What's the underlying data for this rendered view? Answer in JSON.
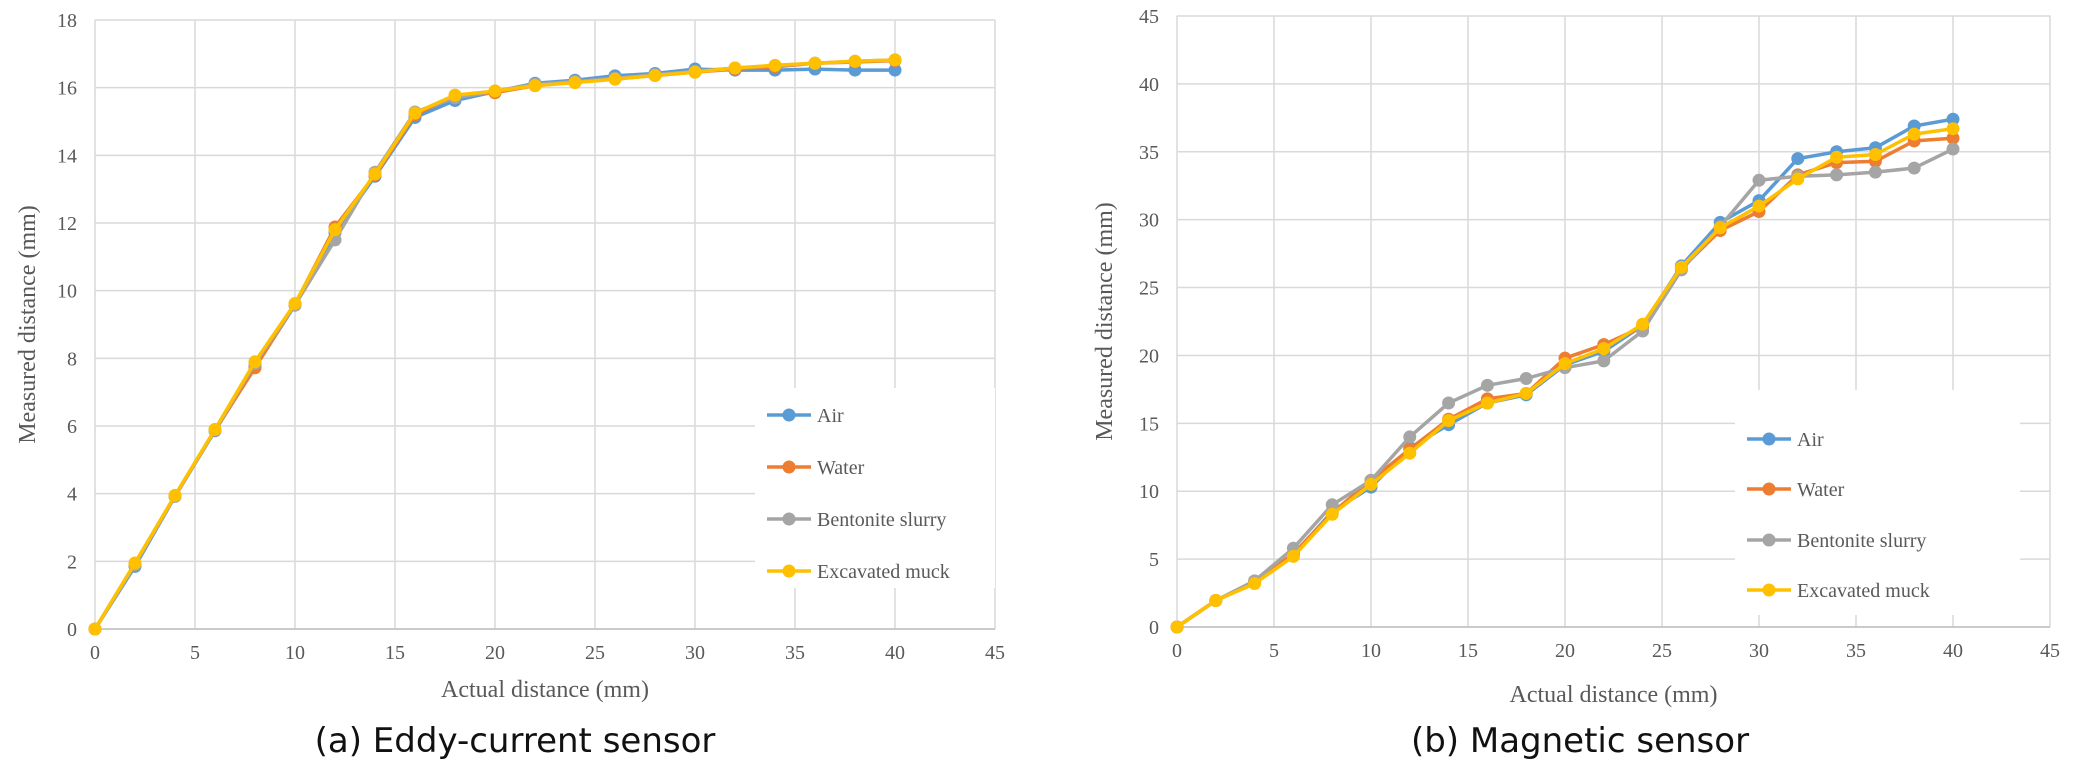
{
  "chart_data": [
    {
      "type": "line",
      "caption": "(a) Eddy-current sensor",
      "xlabel": "Actual distance (mm)",
      "ylabel": "Measured distance (mm)",
      "xlim": [
        0,
        45
      ],
      "ylim": [
        0,
        18
      ],
      "xticks": [
        0,
        5,
        10,
        15,
        20,
        25,
        30,
        35,
        40,
        45
      ],
      "yticks": [
        0,
        2,
        4,
        6,
        8,
        10,
        12,
        14,
        16,
        18
      ],
      "grid": true,
      "legend_position": "bottom-right",
      "x": [
        0,
        2,
        4,
        6,
        8,
        10,
        12,
        14,
        16,
        18,
        20,
        22,
        24,
        26,
        28,
        30,
        32,
        34,
        36,
        38,
        40
      ],
      "series": [
        {
          "name": "Air",
          "color": "#5B9BD5",
          "values": [
            0,
            1.85,
            3.92,
            5.86,
            7.75,
            9.57,
            11.72,
            13.38,
            15.12,
            15.62,
            15.88,
            16.13,
            16.22,
            16.35,
            16.42,
            16.55,
            16.52,
            16.52,
            16.55,
            16.52,
            16.52
          ]
        },
        {
          "name": "Water",
          "color": "#ED7D31",
          "values": [
            0,
            1.92,
            3.94,
            5.88,
            7.72,
            9.6,
            11.88,
            13.42,
            15.2,
            15.75,
            15.85,
            16.06,
            16.16,
            16.26,
            16.36,
            16.46,
            16.55,
            16.62,
            16.72,
            16.76,
            16.8
          ]
        },
        {
          "name": "Bentonite slurry",
          "color": "#A5A5A5",
          "values": [
            0,
            1.9,
            3.93,
            5.88,
            7.85,
            9.58,
            11.5,
            13.5,
            15.28,
            15.7,
            15.9,
            16.1,
            16.18,
            16.28,
            16.38,
            16.48,
            16.58,
            16.65,
            16.72,
            16.78,
            16.82
          ]
        },
        {
          "name": "Excavated muck",
          "color": "#FFC000",
          "values": [
            0,
            1.95,
            3.95,
            5.9,
            7.9,
            9.62,
            11.8,
            13.45,
            15.25,
            15.78,
            15.9,
            16.06,
            16.15,
            16.25,
            16.36,
            16.46,
            16.58,
            16.66,
            16.72,
            16.78,
            16.82
          ]
        }
      ]
    },
    {
      "type": "line",
      "caption": "(b) Magnetic sensor",
      "xlabel": "Actual distance (mm)",
      "ylabel": "Measured distance (mm)",
      "xlim": [
        0,
        45
      ],
      "ylim": [
        0,
        45
      ],
      "xticks": [
        0,
        5,
        10,
        15,
        20,
        25,
        30,
        35,
        40,
        45
      ],
      "yticks": [
        0,
        5,
        10,
        15,
        20,
        25,
        30,
        35,
        40,
        45
      ],
      "grid": true,
      "legend_position": "bottom-right",
      "x": [
        0,
        2,
        4,
        6,
        8,
        10,
        12,
        14,
        16,
        18,
        20,
        22,
        24,
        26,
        28,
        30,
        32,
        34,
        36,
        38,
        40
      ],
      "series": [
        {
          "name": "Air",
          "color": "#5B9BD5",
          "values": [
            0,
            1.95,
            3.3,
            5.3,
            8.5,
            10.3,
            13.2,
            14.9,
            16.5,
            17.1,
            19.3,
            20.3,
            22.2,
            26.6,
            29.8,
            31.4,
            34.5,
            35.0,
            35.3,
            36.9,
            37.4
          ]
        },
        {
          "name": "Water",
          "color": "#ED7D31",
          "values": [
            0,
            1.95,
            3.3,
            5.4,
            8.4,
            10.8,
            13.1,
            15.3,
            16.8,
            17.2,
            19.8,
            20.8,
            22.1,
            26.4,
            29.2,
            30.6,
            33.3,
            34.2,
            34.3,
            35.8,
            36.0
          ]
        },
        {
          "name": "Bentonite slurry",
          "color": "#A5A5A5",
          "values": [
            0,
            1.95,
            3.4,
            5.8,
            9.0,
            10.8,
            14.0,
            16.5,
            17.8,
            18.3,
            19.1,
            19.6,
            21.8,
            26.3,
            29.5,
            32.9,
            33.2,
            33.3,
            33.5,
            33.8,
            35.2
          ]
        },
        {
          "name": "Excavated muck",
          "color": "#FFC000",
          "values": [
            0,
            1.95,
            3.2,
            5.2,
            8.3,
            10.5,
            12.8,
            15.2,
            16.5,
            17.2,
            19.4,
            20.5,
            22.3,
            26.5,
            29.4,
            31.0,
            33.0,
            34.6,
            34.8,
            36.3,
            36.7
          ]
        }
      ]
    }
  ]
}
